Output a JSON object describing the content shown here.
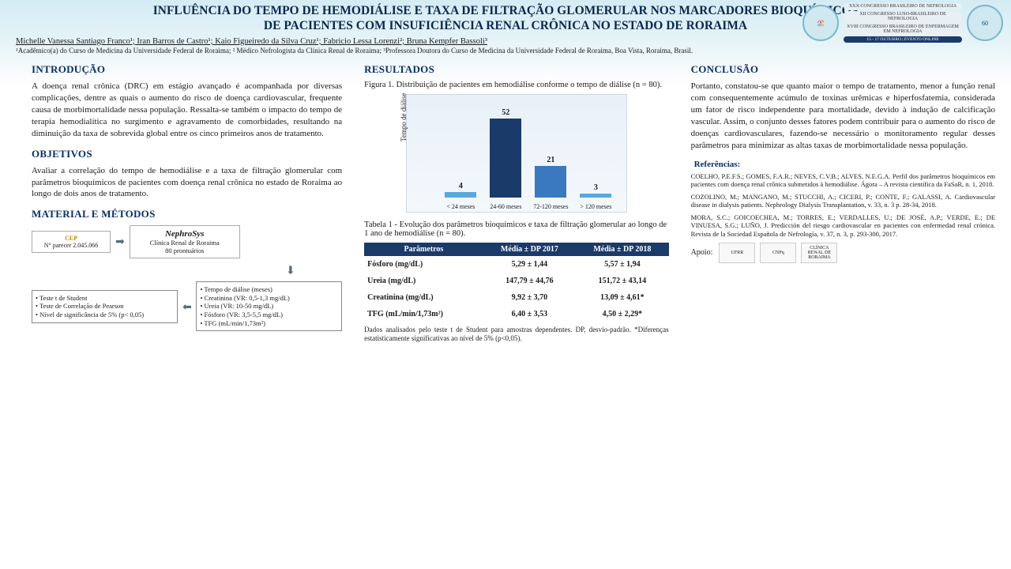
{
  "title": "INFLUÊNCIA DO TEMPO DE HEMODIÁLISE E TAXA DE FILTRAÇÃO GLOMERULAR NOS MARCADORES BIOQUÍMICOS DE PACIENTES COM INSUFICIÊNCIA RENAL CRÔNICA NO ESTADO DE RORAIMA",
  "authors": "Michelle Vanessa Santiago Franco¹; Iran Barros de Castro¹; Kaio Figueiredo da Silva Cruz¹; Fabricio Lessa Lorenzi²; Bruna Kempfer Bassoli³",
  "affil": "¹Acadêmico(a) do Curso de Medicina da Universidade Federal de Roraima; ² Médico Nefrologista da Clínica Renal de Roraima; ³Professora Doutora do Curso de Medicina da Universidade Federal de Roraima, Boa Vista, Roraima, Brasil.",
  "event": {
    "l1": "XXX CONGRESSO BRASILEIRO DE NEFROLOGIA",
    "l2": "XII CONGRESSO LUSO-BRASILEIRO DE NEFROLOGIA",
    "l3": "XVIII CONGRESSO BRASILEIRO DE ENFERMAGEM EM NEFROLOGIA",
    "date": "15 - 17 OUTUBRO | EVENTO ONLINE"
  },
  "sections": {
    "intro_h": "INTRODUÇÃO",
    "intro": "A doença renal crônica (DRC) em estágio avançado é acompanhada por diversas complicações, dentre as quais o aumento do risco de doença cardiovascular, frequente causa de morbimortalidade nessa população. Ressalta-se também o impacto do tempo de terapia hemodialítica no surgimento e agravamento de comorbidades, resultando na diminuição da taxa de sobrevida global entre os cinco primeiros anos de tratamento.",
    "obj_h": "OBJETIVOS",
    "obj": "Avaliar a correlação do tempo de hemodiálise e a taxa de filtração glomerular com parâmetros bioquímicos de pacientes com doença renal crônica no estado de Roraima ao longo de dois anos de tratamento.",
    "met_h": "MATERIAL E MÉTODOS",
    "res_h": "RESULTADOS",
    "concl_h": "CONCLUSÃO",
    "concl": "Portanto, constatou-se que quanto maior o tempo de tratamento, menor a função renal com consequentemente acúmulo de toxinas urêmicas e hiperfosfatemia, considerada um fator de risco independente para mortalidade, devido à indução de calcificação vascular. Assim, o conjunto desses fatores podem contribuir para o aumento do risco de doenças cardiovasculares, fazendo-se necessário o monitoramento regular desses parâmetros para minimizar as altas taxas de morbimortalidade nessa população."
  },
  "methods": {
    "cep_logo": "CEP",
    "cep": "N° parecer 2.045.066",
    "nephro": "NephroSys",
    "nephro_sub": "Clínica Renal de Roraima\n80 prontuários",
    "tests": "• Teste t de Student\n• Teste de Correlação de Pearson\n• Nível de significância de 5% (p< 0,05)",
    "vars": "• Tempo de diálise (meses)\n• Creatinina (VR: 0,5-1,3 mg/dL)\n• Ureia (VR: 10-50 mg/dL)\n• Fósforo (VR: 3,5-5,5 mg/dL)\n• TFG (mL/min/1,73m²)"
  },
  "figure1": {
    "caption": "Figura 1. Distribuição de pacientes em hemodiálise conforme o tempo de diálise (n = 80).",
    "ylabel": "Tempo de diálise",
    "type": "bar",
    "categories": [
      "< 24 meses",
      "24-60 meses",
      "72-120 meses",
      "> 120 meses"
    ],
    "values": [
      4,
      52,
      21,
      3
    ],
    "bar_colors": [
      "#5aa8e0",
      "#1a3a6a",
      "#3a78c0",
      "#5aa8e0"
    ],
    "max": 52,
    "background": "linear-gradient(180deg,#e8f0f8,#f4f8fc)"
  },
  "table1": {
    "caption": "Tabela 1 - Evolução dos parâmetros bioquímicos e taxa de filtração glomerular ao longo de 1 ano de hemodiálise (n = 80).",
    "header_bg": "#1a3a6a",
    "columns": [
      "Parâmetros",
      "Média ± DP 2017",
      "Média ± DP 2018"
    ],
    "rows": [
      [
        "Fósforo (mg/dL)",
        "5,29 ± 1,44",
        "5,57 ± 1,94"
      ],
      [
        "Ureia (mg/dL)",
        "147,79 ± 44,76",
        "151,72 ± 43,14"
      ],
      [
        "Creatinina (mg/dL)",
        "9,92 ± 3,70",
        "13,09 ± 4,61*"
      ],
      [
        "TFG (mL/min/1,73m²)",
        "6,40 ± 3,53",
        "4,50 ± 2,29*"
      ]
    ],
    "note": "Dados analisados pelo teste t de Student para amostras dependentes. DP, desvio-padrão. *Diferenças estatisticamente significativas ao nível de 5% (p<0,05)."
  },
  "refs_h": "Referências:",
  "refs": [
    "COELHO, P.E.F.S.; GOMES, F.A.R.; NEVES, C.V.B.; ALVES, N.E.G.A. Perfil dos parâmetros bioquímicos em pacientes com doença renal crônica submetidos à hemodiálise. Ágora – A revista científica da FaSaR, n. 1, 2018.",
    "COZOLINO, M.; MANGANO, M.; STUCCHI, A.; CICERI, P.; CONTE, F.; GALASSI, A. Cardiovascular disease in dialysis patients. Nephrology Dialysis Transplantation, v. 33, n. 3 p. 28-34, 2018.",
    "MORA, S.C.; GOICOECHEA, M.; TORRES, E.; VERDALLES, U.; DE JOSÉ, A.P.; VERDE, E.; DE VINUESA, S.G.; LUÑO, J. Predicción del riesgo cardiovascular en pacientes con enfermedad renal crónica. Revista de la Sociedad Española de Nefrología, v. 37, n. 3, p. 293-300, 2017."
  ],
  "apoio_label": "Apoio:",
  "apoio_logos": [
    "UFRR",
    "CNPq",
    "CLÍNICA RENAL DE RORAIMA"
  ]
}
